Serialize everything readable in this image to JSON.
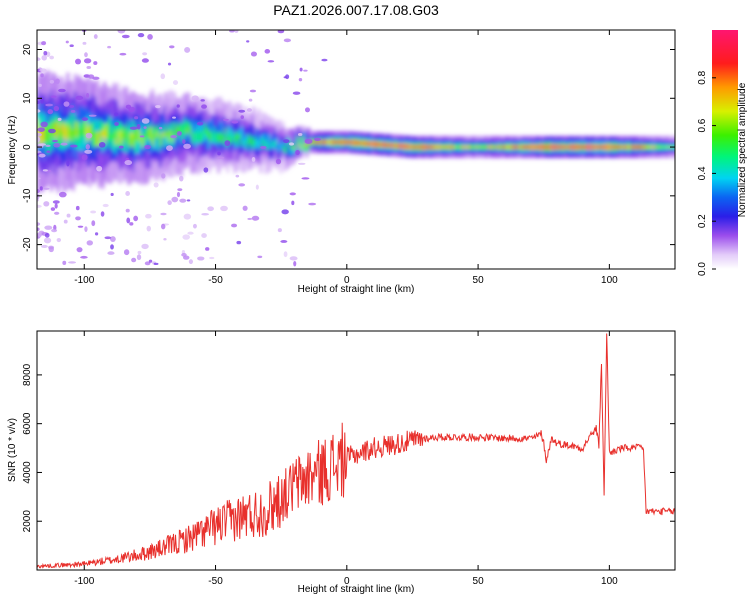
{
  "title": "PAZ1.2026.007.17.08.G03",
  "colors": {
    "snr_line": "#e8302c",
    "axis": "#000000"
  },
  "chart_data": [
    {
      "type": "heatmap",
      "xlabel": "Height of straight line (km)",
      "ylabel": "Frequency (Hz)",
      "xlim": [
        -118,
        125
      ],
      "ylim": [
        -25,
        24
      ],
      "x_ticks": [
        -100,
        -50,
        0,
        50,
        100
      ],
      "y_ticks": [
        -20,
        -10,
        0,
        10,
        20
      ],
      "colormap": "rainbow",
      "colorbar": {
        "label": "Normalized spectral amplitude",
        "range": [
          0.0,
          1.0
        ],
        "ticks": [
          0.0,
          0.2,
          0.4,
          0.6,
          0.8
        ]
      },
      "ridge": {
        "description_values_x": [
          -118,
          -100,
          -80,
          -60,
          -40,
          -25,
          -15,
          0,
          25,
          50,
          75,
          100,
          125
        ],
        "center_frequency": [
          3,
          3,
          2,
          3,
          2,
          0,
          1,
          1,
          0,
          0,
          0,
          0,
          0
        ],
        "frequency_spread": [
          8,
          7,
          6,
          5,
          4,
          3,
          1.5,
          1.5,
          1.5,
          1.5,
          1.5,
          1.5,
          1.5
        ],
        "peak_amplitude": [
          0.6,
          0.6,
          0.55,
          0.5,
          0.45,
          0.4,
          0.7,
          0.9,
          0.9,
          0.6,
          0.9,
          0.9,
          0.5
        ]
      },
      "grid": false,
      "legend": "right (colorbar)"
    },
    {
      "type": "line",
      "xlabel": "Height of straight line (km)",
      "ylabel": "SNR (10 * v/v)",
      "xlim": [
        -118,
        125
      ],
      "ylim": [
        0,
        9800
      ],
      "x_ticks": [
        -100,
        -50,
        0,
        50,
        100
      ],
      "y_ticks": [
        2000,
        4000,
        6000,
        8000
      ],
      "series": [
        {
          "x": [
            -118,
            -100,
            -90,
            -80,
            -70,
            -60,
            -50,
            -45,
            -40,
            -35,
            -30,
            -25,
            -22,
            -20,
            -17,
            -15,
            -13,
            -10,
            -5,
            0,
            5,
            10,
            15,
            20,
            25,
            30,
            35,
            40,
            50,
            60,
            70,
            72,
            74,
            75,
            76,
            78,
            80,
            85,
            90,
            92,
            95,
            96,
            97,
            98,
            99,
            100,
            105,
            110,
            112,
            113,
            114,
            120,
            125
          ],
          "y": [
            150,
            250,
            400,
            600,
            900,
            1300,
            1800,
            2000,
            2200,
            2300,
            2500,
            3000,
            3200,
            3500,
            3600,
            3800,
            3900,
            4000,
            4300,
            4600,
            4800,
            5000,
            5100,
            5200,
            5300,
            5400,
            5450,
            5450,
            5450,
            5400,
            5400,
            5450,
            5600,
            5200,
            4500,
            5400,
            5200,
            5100,
            5000,
            5400,
            5800,
            5100,
            8500,
            3000,
            9800,
            4800,
            5000,
            5000,
            5050,
            4900,
            2400,
            2400,
            2400
          ]
        }
      ],
      "grid": false
    }
  ]
}
